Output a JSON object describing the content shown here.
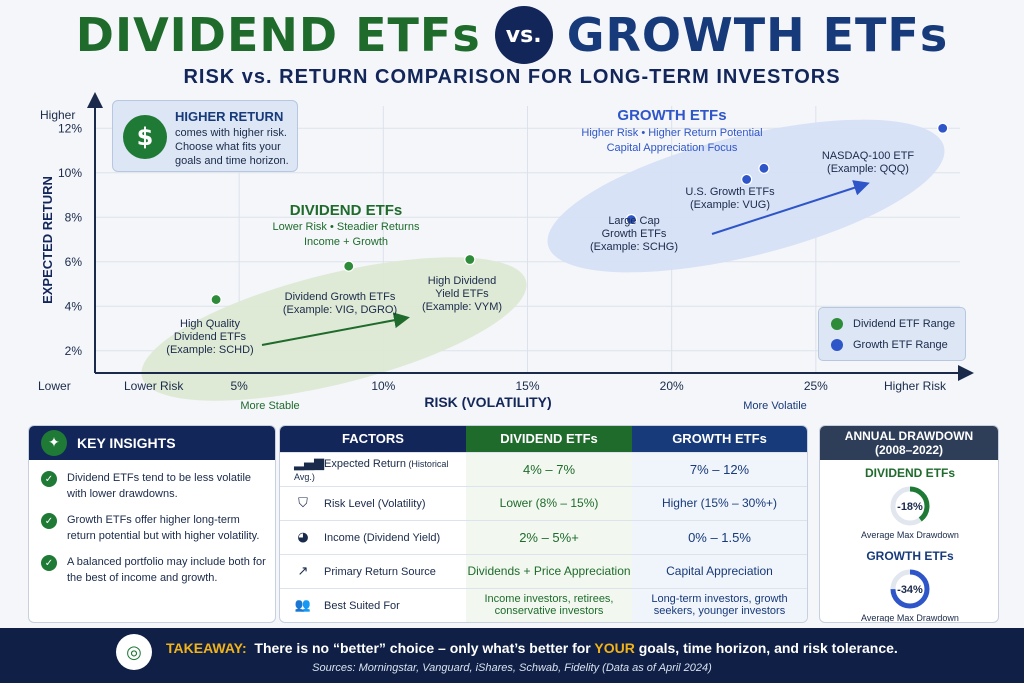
{
  "header": {
    "title_left": "DIVIDEND ETFs",
    "vs": "vs.",
    "title_right": "GROWTH ETFs",
    "subtitle": "RISK vs. RETURN COMPARISON FOR LONG-TERM INVESTORS"
  },
  "callout": {
    "icon": "money-bag-icon",
    "heading": "HIGHER RETURN",
    "body": "comes with higher risk. Choose what fits your goals and time horizon."
  },
  "chart_data": {
    "type": "scatter",
    "xlabel": "RISK (VOLATILITY)",
    "ylabel": "EXPECTED RETURN",
    "xlim": [
      0,
      30
    ],
    "ylim": [
      1,
      13
    ],
    "x_ticks": [
      "5%",
      "10%",
      "15%",
      "20%",
      "25%"
    ],
    "x_tick_values": [
      5,
      10,
      15,
      20,
      25
    ],
    "y_ticks": [
      "2%",
      "4%",
      "6%",
      "8%",
      "10%",
      "12%"
    ],
    "y_tick_values": [
      2,
      4,
      6,
      8,
      10,
      12
    ],
    "x_end_labels": {
      "low": "Lower Risk",
      "high": "Higher Risk",
      "low_sub": "More Stable",
      "high_sub": "More Volatile",
      "origin": "Lower"
    },
    "y_end_labels": {
      "high": "Higher"
    },
    "grid": true,
    "legend_placement": "bottom-right",
    "groups": [
      {
        "title": "DIVIDEND ETFs",
        "line1": "Lower Risk • Steadier Returns",
        "line2": "Income + Growth",
        "color": "#2e8b3a",
        "zone": "#dce9d3"
      },
      {
        "title": "GROWTH ETFs",
        "line1": "Higher Risk • Higher Return Potential",
        "line2": "Capital Appreciation Focus",
        "color": "#2f56c9",
        "zone": "#d6e0f5"
      }
    ],
    "series": [
      {
        "name": "Dividend ETF Range",
        "color": "#2e8b3a",
        "points": [
          {
            "x": 4.2,
            "y": 4.3,
            "label": [
              "High Quality",
              "Dividend ETFs",
              "(Example: SCHD)"
            ]
          },
          {
            "x": 8.8,
            "y": 5.8,
            "label": [
              "Dividend Growth ETFs",
              "(Example: VIG, DGRO)"
            ]
          },
          {
            "x": 13.0,
            "y": 6.1,
            "label": [
              "High Dividend",
              "Yield ETFs",
              "(Example: VYM)"
            ]
          }
        ]
      },
      {
        "name": "Growth ETF Range",
        "color": "#2f56c9",
        "points": [
          {
            "x": 18.6,
            "y": 7.9,
            "label": [
              "Large Cap",
              "Growth ETFs",
              "(Example: SCHG)"
            ]
          },
          {
            "x": 22.6,
            "y": 9.7,
            "label": []
          },
          {
            "x": 23.2,
            "y": 10.2,
            "label": [
              "U.S. Growth ETFs",
              "(Example: VUG)"
            ]
          },
          {
            "x": 29.4,
            "y": 12.0,
            "label": [
              "NASDAQ-100 ETF",
              "(Example: QQQ)"
            ]
          }
        ]
      }
    ]
  },
  "insights": {
    "heading": "KEY INSIGHTS",
    "icon": "lightbulb-icon",
    "items": [
      "Dividend ETFs tend to be less volatile with lower drawdowns.",
      "Growth ETFs offer higher long-term return potential but with higher volatility.",
      "A balanced portfolio may include both for the best of income and growth."
    ]
  },
  "table": {
    "headers": [
      "FACTORS",
      "DIVIDEND ETFs",
      "GROWTH ETFs"
    ],
    "header_colors": [
      "#13265a",
      "#1f6b2c",
      "#173a7a"
    ],
    "rows": [
      {
        "icon": "bar-chart-icon",
        "glyph": "▂▄▆",
        "factor": "Expected Return",
        "note": " (Historical Avg.)",
        "dividend": "4% – 7%",
        "growth": "7% – 12%"
      },
      {
        "icon": "shield-icon",
        "glyph": "⛉",
        "factor": "Risk Level (Volatility)",
        "note": "",
        "dividend": "Lower (8% – 15%)",
        "growth": "Higher (15% – 30%+)"
      },
      {
        "icon": "pie-chart-icon",
        "glyph": "◕",
        "factor": "Income (Dividend Yield)",
        "note": "",
        "dividend": "2% – 5%+",
        "growth": "0% – 1.5%"
      },
      {
        "icon": "trend-up-icon",
        "glyph": "↗",
        "factor": "Primary Return Source",
        "note": "",
        "dividend": "Dividends + Price Appreciation",
        "growth": "Capital Appreciation"
      },
      {
        "icon": "people-icon",
        "glyph": "👥",
        "factor": "Best Suited For",
        "note": "",
        "dividend": "Income investors, retirees, conservative investors",
        "growth": "Long-term investors, growth seekers, younger investors"
      }
    ]
  },
  "drawdown": {
    "heading": "ANNUAL DRAWDOWN",
    "period": "(2008–2022)",
    "dividend_label": "DIVIDEND ETFs",
    "dividend_value": "-18%",
    "dividend_fraction": 0.18,
    "dividend_color": "#1f7a35",
    "growth_label": "GROWTH ETFs",
    "growth_value": "-34%",
    "growth_fraction": 0.34,
    "growth_color": "#2f56c9",
    "caption": "Average Max Drawdown"
  },
  "footer": {
    "icon": "target-icon",
    "takeaway_label": "TAKEAWAY:",
    "text_before": "There is no “better” choice – only what’s better for",
    "highlight": "YOUR",
    "text_after": "goals, time horizon, and risk tolerance.",
    "sources": "Sources: Morningstar, Vanguard, iShares, Schwab, Fidelity (Data as of April 2024)"
  }
}
